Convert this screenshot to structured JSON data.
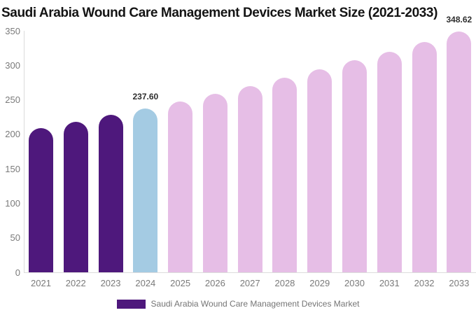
{
  "title": "Saudi Arabia Wound Care Management Devices Market Size (2021-2033)",
  "legend": {
    "label": "Saudi Arabia Wound Care Management Devices Market",
    "swatch_color": "#4E187C"
  },
  "colors": {
    "historical_bar": "#4E187C",
    "current_year_bar": "#A4CBE3",
    "forecast_bar": "#E6BEE6",
    "axis_line": "#DCDCDC",
    "tick_text": "#7A7A7A",
    "title_text": "#141414",
    "value_label_text": "#2E2E2E"
  },
  "chart_data": {
    "type": "bar",
    "title": "Saudi Arabia Wound Care Management Devices Market Size (2021-2033)",
    "xlabel": "",
    "ylabel": "",
    "categories": [
      "2021",
      "2022",
      "2023",
      "2024",
      "2025",
      "2026",
      "2027",
      "2028",
      "2029",
      "2030",
      "2031",
      "2032",
      "2033"
    ],
    "values": [
      209,
      218,
      228,
      237.6,
      248,
      259,
      270,
      282,
      294,
      307,
      320,
      334,
      348.62
    ],
    "bar_colors": [
      "#4E187C",
      "#4E187C",
      "#4E187C",
      "#A4CBE3",
      "#E6BEE6",
      "#E6BEE6",
      "#E6BEE6",
      "#E6BEE6",
      "#E6BEE6",
      "#E6BEE6",
      "#E6BEE6",
      "#E6BEE6",
      "#E6BEE6"
    ],
    "value_labels": [
      {
        "category": "2024",
        "text": "237.60"
      },
      {
        "category": "2033",
        "text": "348.62"
      }
    ],
    "yticks": [
      0,
      50,
      100,
      150,
      200,
      250,
      300,
      350
    ],
    "ylim": [
      0,
      350
    ],
    "grid": false,
    "legend_position": "bottom",
    "legend_entries": [
      "Saudi Arabia Wound Care Management Devices Market"
    ]
  }
}
